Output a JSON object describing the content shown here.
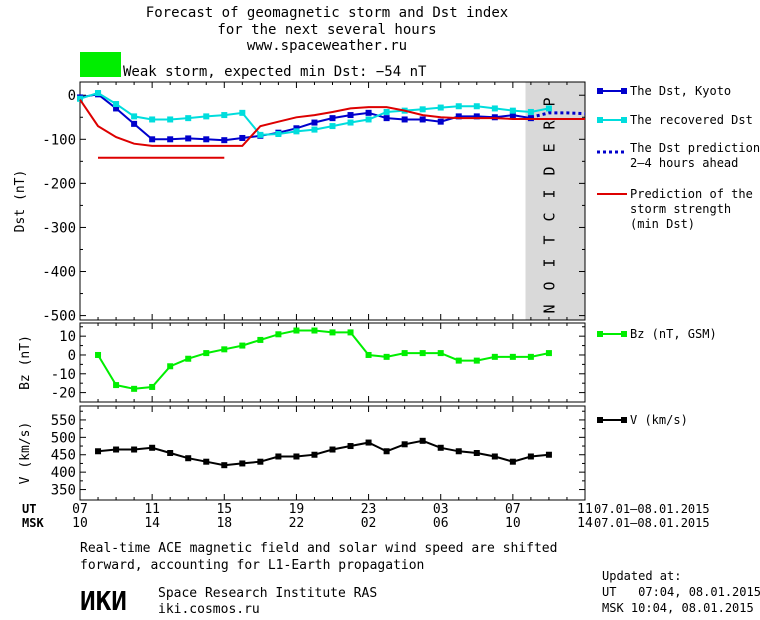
{
  "header": {
    "title_lines": [
      "Forecast of geomagnetic storm and Dst index",
      "for the next several hours",
      "www.spaceweather.ru"
    ],
    "storm_color": "#00ee00",
    "storm_text": "Weak storm, expected min Dst: −54 nT"
  },
  "prediction_label": "PREDICTION",
  "chart_data": [
    {
      "type": "line",
      "ylabel": "Dst (nT)",
      "ylim": [
        -510,
        30
      ],
      "yticks": [
        0,
        -100,
        -200,
        -300,
        -400,
        -500
      ],
      "xlim": [
        0,
        28
      ],
      "series": [
        {
          "name": "The Dst, Kyoto",
          "color": "#0000cc",
          "marker": "square",
          "x": [
            0,
            1,
            2,
            3,
            4,
            5,
            6,
            7,
            8,
            9,
            10,
            11,
            12,
            13,
            14,
            15,
            16,
            17,
            18,
            19,
            20,
            21,
            22,
            23,
            24,
            25
          ],
          "y": [
            -5,
            2,
            -30,
            -65,
            -100,
            -100,
            -98,
            -100,
            -102,
            -97,
            -92,
            -85,
            -75,
            -62,
            -52,
            -45,
            -40,
            -52,
            -55,
            -55,
            -60,
            -48,
            -48,
            -50,
            -45,
            -52
          ]
        },
        {
          "name": "The recovered Dst",
          "color": "#00dddd",
          "marker": "square",
          "x": [
            0,
            1,
            2,
            3,
            4,
            5,
            6,
            7,
            8,
            9,
            10,
            11,
            12,
            13,
            14,
            15,
            16,
            17,
            18,
            19,
            20,
            21,
            22,
            23,
            24,
            25,
            26
          ],
          "y": [
            -8,
            5,
            -20,
            -48,
            -55,
            -55,
            -52,
            -48,
            -45,
            -40,
            -90,
            -88,
            -82,
            -78,
            -70,
            -62,
            -55,
            -38,
            -35,
            -32,
            -28,
            -25,
            -25,
            -30,
            -35,
            -38,
            -30
          ]
        },
        {
          "name": "The Dst prediction 2–4 hours ahead",
          "color": "#0000cc",
          "dashed": true,
          "x": [
            25,
            26,
            27,
            28
          ],
          "y": [
            -50,
            -40,
            -40,
            -42
          ]
        },
        {
          "name": "Prediction of the storm strength (min Dst)",
          "color": "#dd0000",
          "x": [
            0,
            1,
            2,
            3,
            4,
            5,
            6,
            7,
            8,
            9,
            10,
            11,
            12,
            13,
            14,
            15,
            16,
            17,
            18,
            19,
            20,
            21,
            22,
            23,
            24,
            25,
            26,
            27,
            28
          ],
          "y": [
            -10,
            -70,
            -95,
            -110,
            -115,
            -115,
            -115,
            -115,
            -115,
            -115,
            -70,
            -60,
            -50,
            -45,
            -38,
            -30,
            -27,
            -27,
            -35,
            -45,
            -50,
            -52,
            -52,
            -52,
            -54,
            -54,
            -54,
            -54,
            -54
          ]
        },
        {
          "name": "",
          "color": "#dd0000",
          "x": [
            1,
            8
          ],
          "y": [
            -142,
            -142
          ]
        }
      ]
    },
    {
      "type": "line",
      "ylabel": "Bz (nT)",
      "ylim": [
        -25,
        17
      ],
      "yticks": [
        10,
        0,
        -10,
        -20
      ],
      "xlim": [
        0,
        28
      ],
      "series": [
        {
          "name": "Bz (nT, GSM)",
          "color": "#00ee00",
          "marker": "square",
          "x": [
            1,
            2,
            3,
            4,
            5,
            6,
            7,
            8,
            9,
            10,
            11,
            12,
            13,
            14,
            15,
            16,
            17,
            18,
            19,
            20,
            21,
            22,
            23,
            24,
            25,
            26
          ],
          "y": [
            0,
            -16,
            -18,
            -17,
            -6,
            -2,
            1,
            3,
            5,
            8,
            11,
            13,
            13,
            12,
            12,
            0,
            -1,
            1,
            1,
            1,
            -3,
            -3,
            -1,
            -1,
            -1,
            1
          ]
        }
      ]
    },
    {
      "type": "line",
      "ylabel": "V (km/s)",
      "ylim": [
        320,
        590
      ],
      "yticks": [
        550,
        500,
        450,
        400,
        350
      ],
      "xlim": [
        0,
        28
      ],
      "series": [
        {
          "name": "V (km/s)",
          "color": "#000000",
          "marker": "square",
          "x": [
            1,
            2,
            3,
            4,
            5,
            6,
            7,
            8,
            9,
            10,
            11,
            12,
            13,
            14,
            15,
            16,
            17,
            18,
            19,
            20,
            21,
            22,
            23,
            24,
            25,
            26
          ],
          "y": [
            460,
            465,
            465,
            470,
            455,
            440,
            430,
            420,
            425,
            430,
            445,
            445,
            450,
            465,
            475,
            485,
            460,
            480,
            490,
            470,
            460,
            455,
            445,
            430,
            445,
            450
          ]
        }
      ]
    }
  ],
  "time_axis": {
    "ut_label": "UT",
    "msk_label": "MSK",
    "ut_ticks": [
      "07",
      "11",
      "15",
      "19",
      "23",
      "03",
      "07",
      "11"
    ],
    "msk_ticks": [
      "10",
      "14",
      "18",
      "22",
      "02",
      "06",
      "10",
      "14"
    ],
    "ut_range": "07.01–08.01.2015",
    "msk_range": "07.01–08.01.2015"
  },
  "footer": {
    "note_line1": "Real-time ACE magnetic field and solar wind speed are shifted",
    "note_line2": "forward, accounting for L1-Earth propagation",
    "logo": "ИКИ",
    "institute": "Space Research Institute RAS",
    "site": "iki.cosmos.ru",
    "updated_label": "Updated at:",
    "updated_ut": "UT   07:04, 08.01.2015",
    "updated_msk": "MSK 10:04, 08.01.2015"
  }
}
